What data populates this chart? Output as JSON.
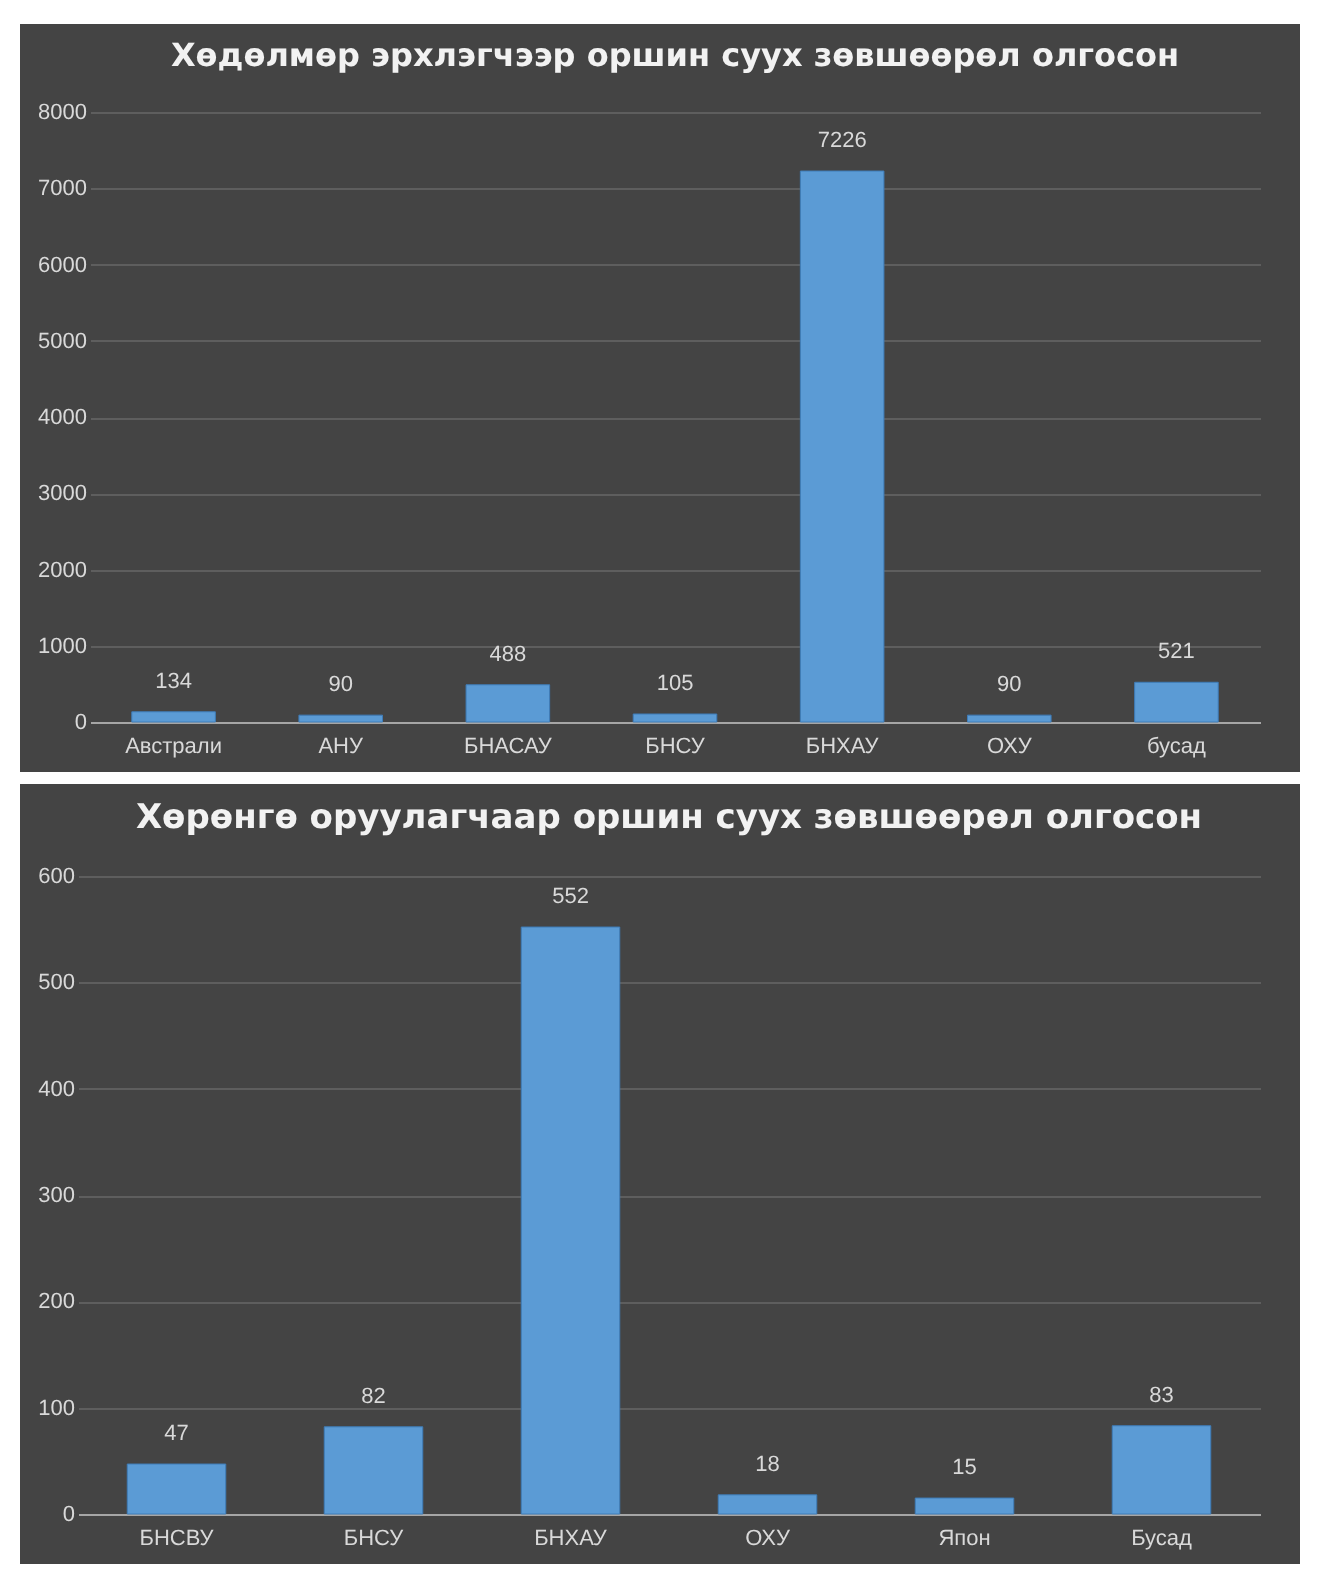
{
  "chart_data": [
    {
      "type": "bar",
      "title": "Хөдөлмөр эрхлэгчээр оршин суух зөвшөөрөл олгосон",
      "categories": [
        "Австрали",
        "АНУ",
        "БНАСАУ",
        "БНСУ",
        "БНХАУ",
        "ОХУ",
        "бусад"
      ],
      "values": [
        134,
        90,
        488,
        105,
        7226,
        90,
        521
      ],
      "color": "#5b9bd5",
      "ylim": [
        0,
        8000
      ],
      "yticks": [
        0,
        1000,
        2000,
        3000,
        4000,
        5000,
        6000,
        7000,
        8000
      ],
      "grid": "y",
      "data_labels": true
    },
    {
      "type": "bar",
      "title": "Хөрөнгө оруулагчаар оршин суух зөвшөөрөл олгосон",
      "categories": [
        "БНСВУ",
        "БНСУ",
        "БНХАУ",
        "ОХУ",
        "Япон",
        "Бусад"
      ],
      "values": [
        47,
        82,
        552,
        18,
        15,
        83
      ],
      "color": "#5b9bd5",
      "ylim": [
        0,
        600
      ],
      "yticks": [
        0,
        100,
        200,
        300,
        400,
        500,
        600
      ],
      "grid": "y",
      "data_labels": true
    }
  ]
}
